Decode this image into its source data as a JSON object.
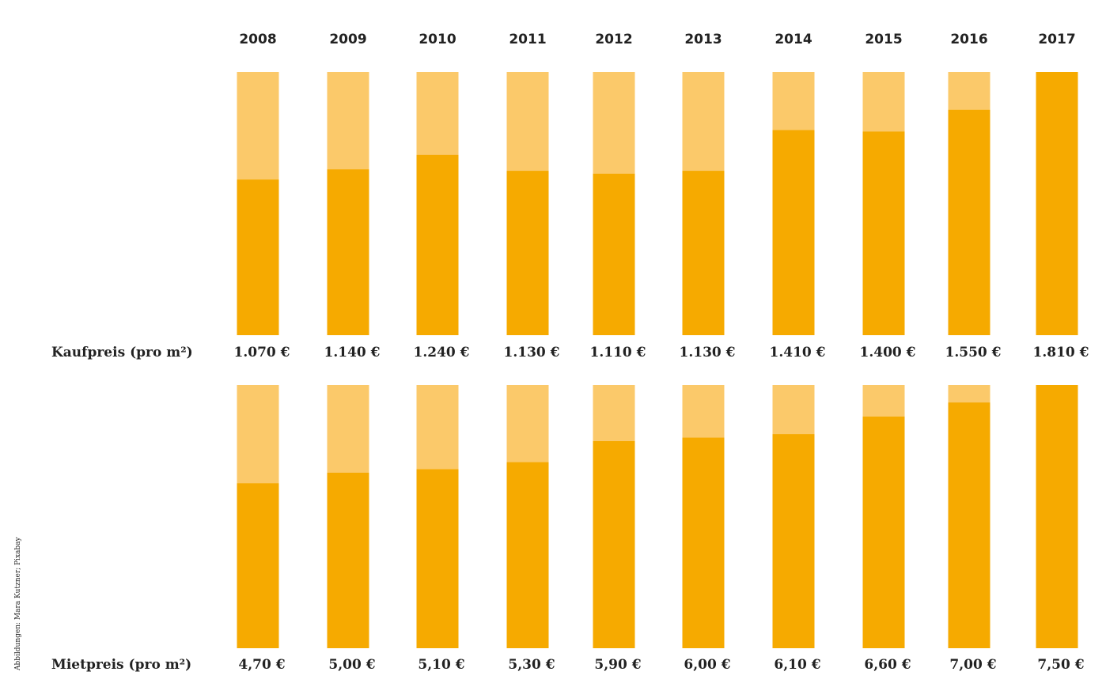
{
  "credit": "Abbildungen: Mara Kutzner; Pixabay",
  "colors": {
    "bar": "#F6AA00",
    "track": "#FBC96A",
    "text": "#222222"
  },
  "chart_data": [
    {
      "type": "bar",
      "title": "",
      "row_label": "Kaufpreis (pro m²)",
      "categories": [
        "2008",
        "2009",
        "2010",
        "2011",
        "2012",
        "2013",
        "2014",
        "2015",
        "2016",
        "2017"
      ],
      "values": [
        1070,
        1140,
        1240,
        1130,
        1110,
        1130,
        1410,
        1400,
        1550,
        1810
      ],
      "value_labels": [
        "1.070 €",
        "1.140 €",
        "1.240 €",
        "1.130 €",
        "1.110 €",
        "1.130 €",
        "1.410 €",
        "1.400 €",
        "1.550 €",
        "1.810 €"
      ],
      "ylim": [
        0,
        1810
      ],
      "grid": false
    },
    {
      "type": "bar",
      "title": "",
      "row_label": "Mietpreis (pro m²)",
      "categories": [
        "2008",
        "2009",
        "2010",
        "2011",
        "2012",
        "2013",
        "2014",
        "2015",
        "2016",
        "2017"
      ],
      "values": [
        4.7,
        5.0,
        5.1,
        5.3,
        5.9,
        6.0,
        6.1,
        6.6,
        7.0,
        7.5
      ],
      "value_labels": [
        "4,70 €",
        "5,00 €",
        "5,10 €",
        "5,30 €",
        "5,90 €",
        "6,00 €",
        "6,10 €",
        "6,60 €",
        "7,00 €",
        "7,50 €"
      ],
      "ylim": [
        0,
        7.5
      ],
      "grid": false
    }
  ]
}
